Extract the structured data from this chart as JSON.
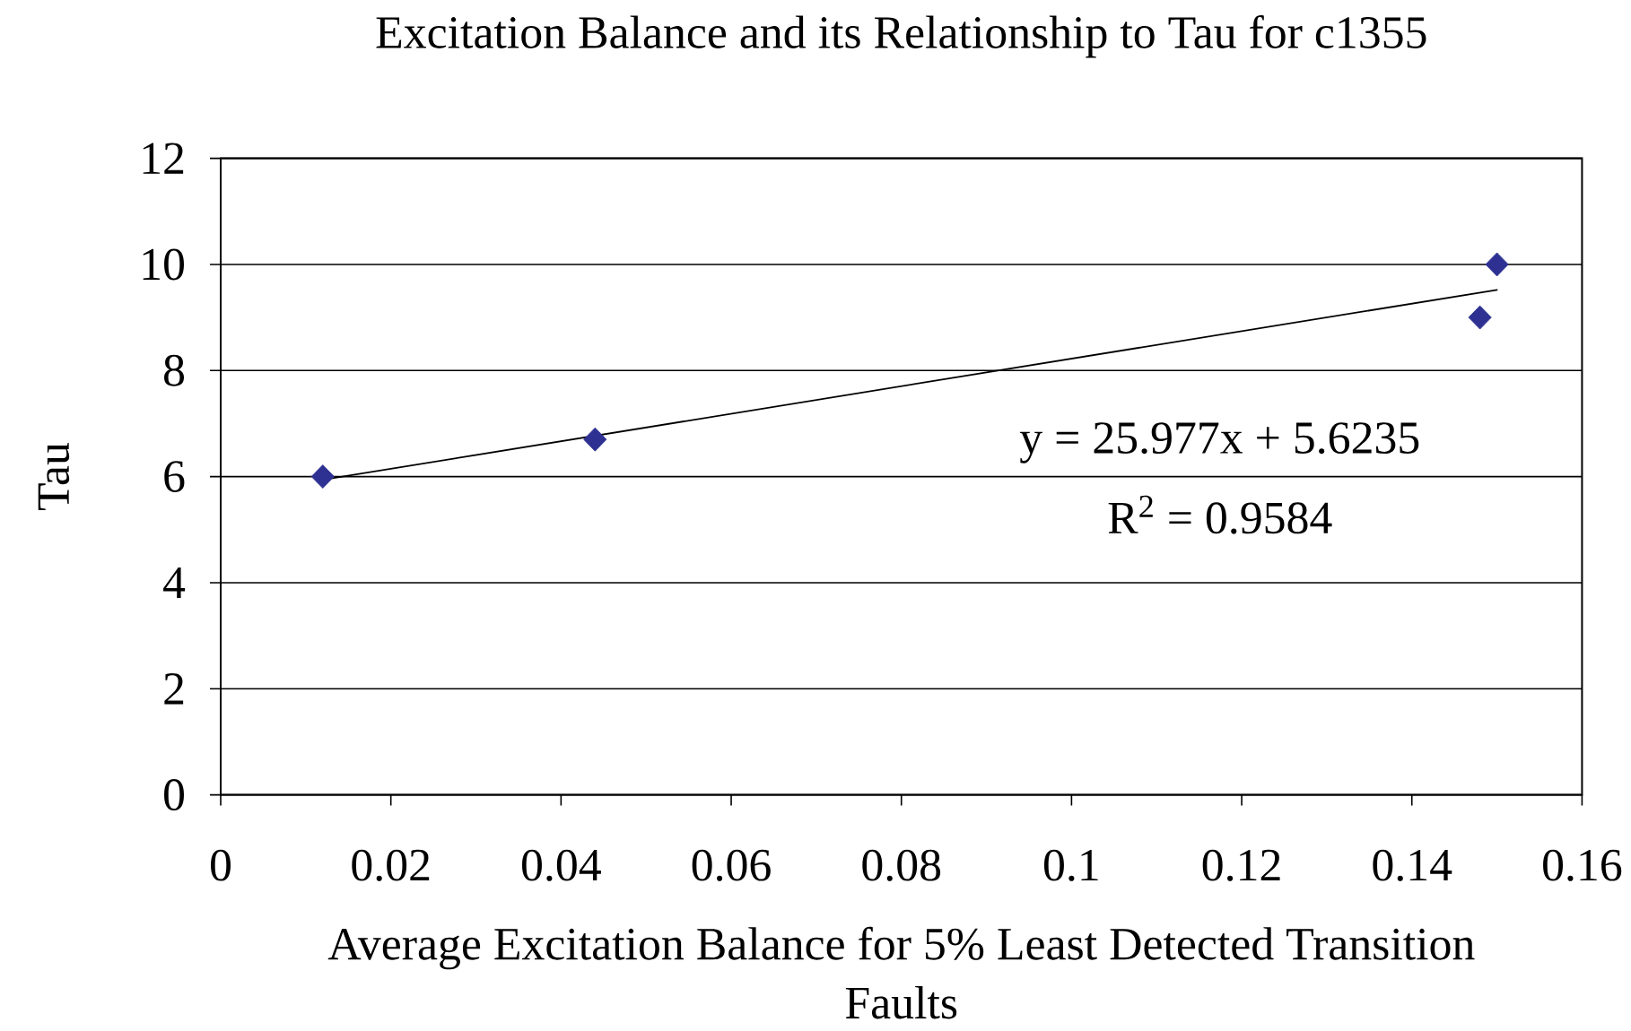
{
  "chart_data": {
    "type": "scatter",
    "title": "Excitation Balance and its Relationship to Tau for c1355",
    "xlabel": "Average Excitation Balance for 5% Least Detected Transition Faults",
    "ylabel": "Tau",
    "annotations": [
      "y = 25.977x + 5.6235",
      "R$^{2}$ = 0.9584"
    ],
    "series": [
      {
        "color": "#2e3192",
        "marker": "diamond",
        "x": [
          0.012,
          0.044,
          0.148,
          0.15
        ],
        "values": [
          6,
          6.7,
          9,
          10
        ]
      },
      {
        "type": "line",
        "color": "#000000",
        "marker": "none",
        "x": [
          0.012,
          0.15
        ],
        "values": [
          5.94,
          9.52
        ]
      }
    ],
    "xlim": [
      0,
      0.16
    ],
    "ylim": [
      0,
      12
    ],
    "xticks": [
      0,
      0.02,
      0.04,
      0.06,
      0.08,
      0.1,
      0.12,
      0.14,
      0.16
    ],
    "yticks": [
      0,
      2,
      4,
      6,
      8,
      10,
      12
    ],
    "grid": "y",
    "line_style": "solid"
  }
}
